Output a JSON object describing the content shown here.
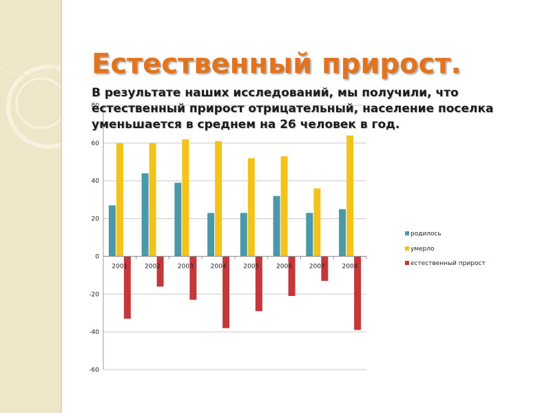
{
  "slide": {
    "title": "Естественный прирост.",
    "text": "В результате наших исследований, мы получили, что естественный прирост отрицательный, население поселка уменьшается в среднем на 26 человек в год."
  },
  "chart_data": {
    "type": "bar",
    "categories": [
      "2001",
      "2002",
      "2003",
      "2004",
      "2005",
      "2006",
      "2007",
      "2008"
    ],
    "series": [
      {
        "name": "родилось",
        "color": "#4a98a8",
        "values": [
          27,
          44,
          39,
          23,
          23,
          32,
          23,
          25
        ]
      },
      {
        "name": "умерло",
        "color": "#f3c31c",
        "values": [
          60,
          60,
          62,
          61,
          52,
          53,
          36,
          64
        ]
      },
      {
        "name": "естественный прирост",
        "color": "#c4383c",
        "values": [
          -33,
          -16,
          -23,
          -38,
          -29,
          -21,
          -13,
          -39
        ]
      }
    ],
    "ylim": [
      -60,
      80
    ],
    "yticks": [
      80,
      60,
      40,
      20,
      0,
      -20,
      -40,
      -60
    ],
    "grid": true,
    "legend": "right"
  }
}
